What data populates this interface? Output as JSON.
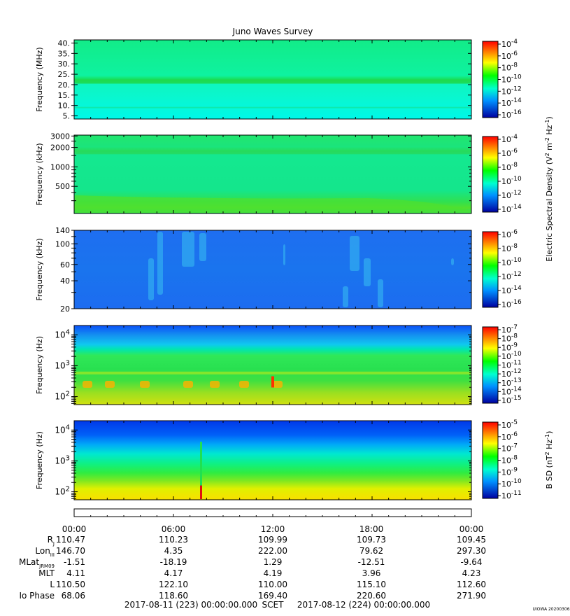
{
  "chart_data": {
    "type": "heatmap",
    "title": "Juno Waves Survey",
    "corner_tag": "UIOWA 20200306",
    "panels": [
      {
        "id": "p1",
        "ylabel": "Frequency (MHz)",
        "yticks": [
          "40.",
          "35.",
          "30.",
          "25.",
          "20.",
          "15.",
          "10.",
          "5."
        ],
        "ytick_values": [
          40,
          35,
          30,
          25,
          20,
          15,
          10,
          5
        ],
        "ylim": [
          3.5,
          41.5
        ],
        "colorbar": {
          "base": "10",
          "exponents": [
            "-4",
            "-6",
            "-8",
            "-10",
            "-12",
            "-14",
            "-16"
          ]
        }
      },
      {
        "id": "p2",
        "ylabel": "Frequency (kHz)",
        "yticks": [
          "3000",
          "2000",
          "1000",
          "500"
        ],
        "ytick_values": [
          3000,
          2000,
          1000,
          500
        ],
        "colorbar": {
          "base": "10",
          "exponents": [
            "-4",
            "-6",
            "-8",
            "-10",
            "-12",
            "-14"
          ]
        }
      },
      {
        "id": "p3",
        "ylabel": "Frequency (kHz)",
        "yticks": [
          "140",
          "100",
          "60",
          "40",
          "20"
        ],
        "ytick_values": [
          140,
          100,
          60,
          40,
          20
        ],
        "colorbar": {
          "base": "10",
          "exponents": [
            "-6",
            "-8",
            "-10",
            "-12",
            "-14",
            "-16"
          ]
        }
      },
      {
        "id": "p4",
        "ylabel": "Frequency (Hz)",
        "yticks": [
          {
            "base": "10",
            "exp": "4"
          },
          {
            "base": "10",
            "exp": "3"
          },
          {
            "base": "10",
            "exp": "2"
          }
        ],
        "colorbar": {
          "base": "10",
          "exponents": [
            "-7",
            "-8",
            "-9",
            "-10",
            "-11",
            "-12",
            "-13",
            "-14",
            "-15"
          ]
        }
      },
      {
        "id": "p5",
        "ylabel": "Frequency (Hz)",
        "yticks": [
          {
            "base": "10",
            "exp": "4"
          },
          {
            "base": "10",
            "exp": "3"
          },
          {
            "base": "10",
            "exp": "2"
          }
        ],
        "colorbar": {
          "base": "10",
          "exponents": [
            "-5",
            "-6",
            "-7",
            "-8",
            "-9",
            "-10",
            "-11"
          ]
        }
      }
    ],
    "colorbar_label_e": "Electric Spectral Density (V",
    "colorbar_label_b": "B SD (nT",
    "time_ticks": [
      "00:00",
      "06:00",
      "12:00",
      "18:00",
      "00:00"
    ],
    "ephemeris": [
      {
        "label": "R",
        "sub": "J",
        "values": [
          "110.47",
          "110.23",
          "109.99",
          "109.73",
          "109.45"
        ]
      },
      {
        "label": "Lon",
        "sub": "III",
        "values": [
          "146.70",
          "4.35",
          "222.00",
          "79.62",
          "297.30"
        ]
      },
      {
        "label": "MLat",
        "sub": "JRM09",
        "values": [
          "-1.51",
          "-18.19",
          "1.29",
          "-12.51",
          "-9.64"
        ]
      },
      {
        "label": "MLT",
        "sub": "",
        "values": [
          "4.11",
          "4.17",
          "4.19",
          "3.96",
          "4.23"
        ]
      },
      {
        "label": "L",
        "sub": "",
        "values": [
          "110.50",
          "122.10",
          "110.00",
          "115.10",
          "112.60"
        ]
      },
      {
        "label": "Io Phase",
        "sub": "",
        "values": [
          "68.06",
          "118.60",
          "169.40",
          "220.60",
          "271.90"
        ]
      }
    ],
    "footer": {
      "start": "2017-08-11 (223) 00:00:00.000",
      "scet": "SCET",
      "end": "2017-08-12 (224) 00:00:00.000"
    }
  }
}
